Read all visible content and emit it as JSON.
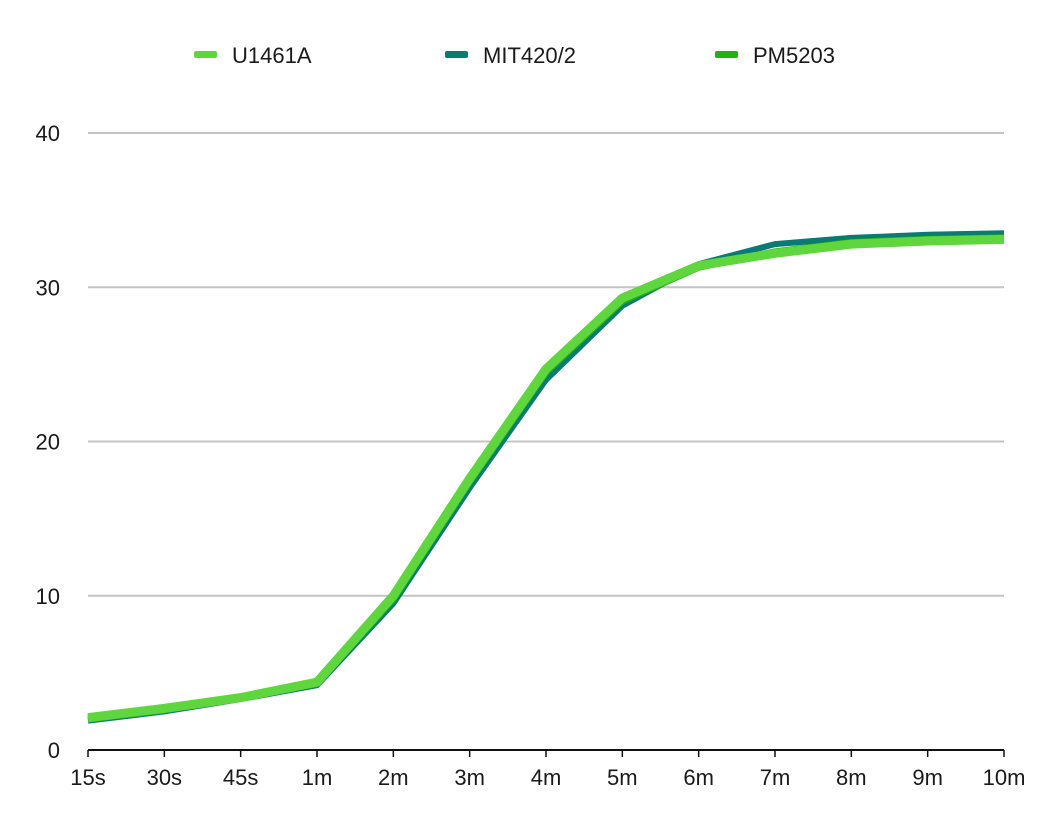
{
  "chart_data": {
    "type": "line",
    "title": "",
    "xlabel": "",
    "ylabel": "",
    "categories": [
      "15s",
      "30s",
      "45s",
      "1m",
      "2m",
      "3m",
      "4m",
      "5m",
      "6m",
      "7m",
      "8m",
      "9m",
      "10m"
    ],
    "ylim": [
      0,
      40
    ],
    "yticks": [
      0,
      10,
      20,
      30,
      40
    ],
    "grid": true,
    "legend_position": "top",
    "series": [
      {
        "name": "U1461A",
        "color": "#5fd63e",
        "values": [
          2.1,
          2.7,
          3.4,
          4.4,
          10.0,
          17.6,
          24.7,
          29.3,
          31.4,
          32.2,
          32.8,
          33.0,
          33.1
        ]
      },
      {
        "name": "MIT420/2",
        "color": "#0b7a72",
        "values": [
          1.9,
          2.5,
          3.3,
          4.2,
          9.5,
          17.0,
          24.0,
          28.8,
          31.5,
          32.8,
          33.2,
          33.4,
          33.5
        ]
      },
      {
        "name": "PM5203",
        "color": "#22b014",
        "values": [
          2.0,
          2.6,
          3.4,
          4.3,
          9.8,
          17.4,
          24.5,
          29.1,
          31.3,
          32.3,
          32.9,
          33.1,
          33.2
        ]
      }
    ]
  }
}
